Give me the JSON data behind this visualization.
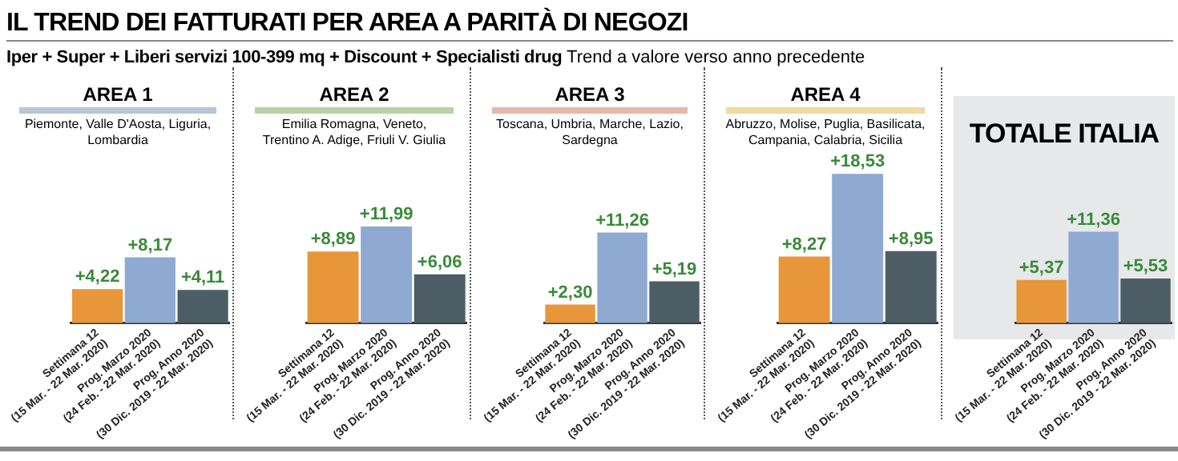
{
  "chart_data": [
    {
      "type": "other",
      "title": "IL TREND DEI FATTURATI PER AREA A PARITÀ DI NEGOZI",
      "subtitle": "Iper + Super + Liberi servizi 100-399 mq + Discount + Specialisti drug",
      "annotations": [
        "Trend a valore verso anno precedente"
      ]
    },
    {
      "type": "bar",
      "title": "AREA 1",
      "subtitle": "Piemonte, Valle D'Aosta, Liguria,\nLombardia",
      "categories": [
        "Settimana 12\n(15 Mar. - 22 Mar. 2020)",
        "Prog. Marzo 2020\n(24 Feb. - 22 Mar. 2020)",
        "Prog. Anno 2020\n(30 Dic. 2019 - 22 Mar. 2020)"
      ],
      "values": [
        4.22,
        8.17,
        4.11
      ],
      "colors": [
        "#e8963a",
        "#8ea9d2",
        "#4c5d66"
      ],
      "value_labels": [
        "+4,22",
        "+8,17",
        "+4,11"
      ]
    },
    {
      "type": "bar",
      "title": "AREA 2",
      "subtitle": "Emilia Romagna, Veneto,\nTrentino A. Adige, Friuli V. Giulia",
      "categories": [
        "Settimana 12\n(15 Mar. - 22 Mar. 2020)",
        "Prog. Marzo 2020\n(24 Feb. - 22 Mar. 2020)",
        "Prog. Anno 2020\n(30 Dic. 2019 - 22 Mar. 2020)"
      ],
      "values": [
        8.89,
        11.99,
        6.06
      ],
      "colors": [
        "#e8963a",
        "#8ea9d2",
        "#4c5d66"
      ],
      "value_labels": [
        "+8,89",
        "+11,99",
        "+6,06"
      ]
    },
    {
      "type": "bar",
      "title": "AREA 3",
      "subtitle": "Toscana, Umbria, Marche, Lazio,\nSardegna",
      "categories": [
        "Settimana 12\n(15 Mar. - 22 Mar. 2020)",
        "Prog. Marzo 2020\n(24 Feb. - 22 Mar. 2020)",
        "Prog. Anno 2020\n(30 Dic. 2019 - 22 Mar. 2020)"
      ],
      "values": [
        2.3,
        11.26,
        5.19
      ],
      "colors": [
        "#e8963a",
        "#8ea9d2",
        "#4c5d66"
      ],
      "value_labels": [
        "+2,30",
        "+11,26",
        "+5,19"
      ]
    },
    {
      "type": "bar",
      "title": "AREA 4",
      "subtitle": "Abruzzo, Molise, Puglia, Basilicata,\nCampania, Calabria, Sicilia",
      "categories": [
        "Settimana 12\n(15 Mar. - 22 Mar. 2020)",
        "Prog. Marzo 2020\n(24 Feb. - 22 Mar. 2020)",
        "Prog. Anno 2020\n(30 Dic. 2019 - 22 Mar. 2020)"
      ],
      "values": [
        8.27,
        18.53,
        8.95
      ],
      "colors": [
        "#e8963a",
        "#8ea9d2",
        "#4c5d66"
      ],
      "value_labels": [
        "+8,27",
        "+18,53",
        "+8,95"
      ]
    },
    {
      "type": "bar",
      "title": "TOTALE ITALIA",
      "categories": [
        "Settimana 12\n(15 Mar. - 22 Mar. 2020)",
        "Prog. Marzo 2020\n(24 Feb. - 22 Mar. 2020)",
        "Prog. Anno 2020\n(30 Dic. 2019 - 22 Mar. 2020)"
      ],
      "values": [
        5.37,
        11.36,
        5.53
      ],
      "colors": [
        "#e8963a",
        "#8ea9d2",
        "#4c5d66"
      ],
      "value_labels": [
        "+5,37",
        "+11,36",
        "+5,53"
      ]
    }
  ]
}
